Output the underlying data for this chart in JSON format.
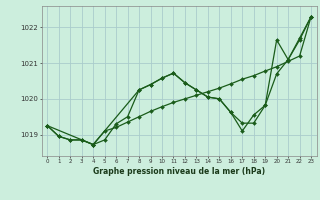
{
  "xlabel": "Graphe pression niveau de la mer (hPa)",
  "bg_color": "#cceedd",
  "grid_color": "#aacccc",
  "line_color": "#1a5c1a",
  "x_ticks": [
    0,
    1,
    2,
    3,
    4,
    5,
    6,
    7,
    8,
    9,
    10,
    11,
    12,
    13,
    14,
    15,
    16,
    17,
    18,
    19,
    20,
    21,
    22,
    23
  ],
  "ylim": [
    1018.4,
    1022.6
  ],
  "yticks": [
    1019,
    1020,
    1021,
    1022
  ],
  "line1_x": [
    0,
    1,
    2,
    3,
    4,
    5,
    6,
    7,
    8,
    9,
    10,
    11,
    12,
    13,
    14,
    15,
    16,
    17,
    18,
    19,
    20,
    21,
    22,
    23
  ],
  "line1_y": [
    1019.25,
    1018.95,
    1018.85,
    1018.85,
    1018.72,
    1018.85,
    1019.3,
    1019.5,
    1020.25,
    1020.4,
    1020.58,
    1020.72,
    1020.45,
    1020.25,
    1020.05,
    1020.0,
    1019.62,
    1019.32,
    1019.32,
    1019.82,
    1020.7,
    1021.1,
    1021.65,
    1022.3
  ],
  "line2_x": [
    0,
    1,
    2,
    3,
    4,
    5,
    6,
    7,
    8,
    9,
    10,
    11,
    12,
    13,
    14,
    15,
    16,
    17,
    18,
    19,
    20,
    21,
    22,
    23
  ],
  "line2_y": [
    1019.25,
    1018.95,
    1018.85,
    1018.85,
    1018.72,
    1019.1,
    1019.2,
    1019.35,
    1019.5,
    1019.65,
    1019.78,
    1019.9,
    1020.0,
    1020.1,
    1020.2,
    1020.3,
    1020.42,
    1020.55,
    1020.65,
    1020.78,
    1020.9,
    1021.05,
    1021.2,
    1022.3
  ],
  "line3_x": [
    0,
    4,
    8,
    9,
    10,
    11,
    12,
    13,
    14,
    15,
    16,
    17,
    18,
    19,
    20,
    21,
    22,
    23
  ],
  "line3_y": [
    1019.25,
    1018.72,
    1020.25,
    1020.4,
    1020.58,
    1020.72,
    1020.45,
    1020.25,
    1020.05,
    1020.0,
    1019.62,
    1019.1,
    1019.55,
    1019.82,
    1021.65,
    1021.1,
    1021.7,
    1022.3
  ]
}
